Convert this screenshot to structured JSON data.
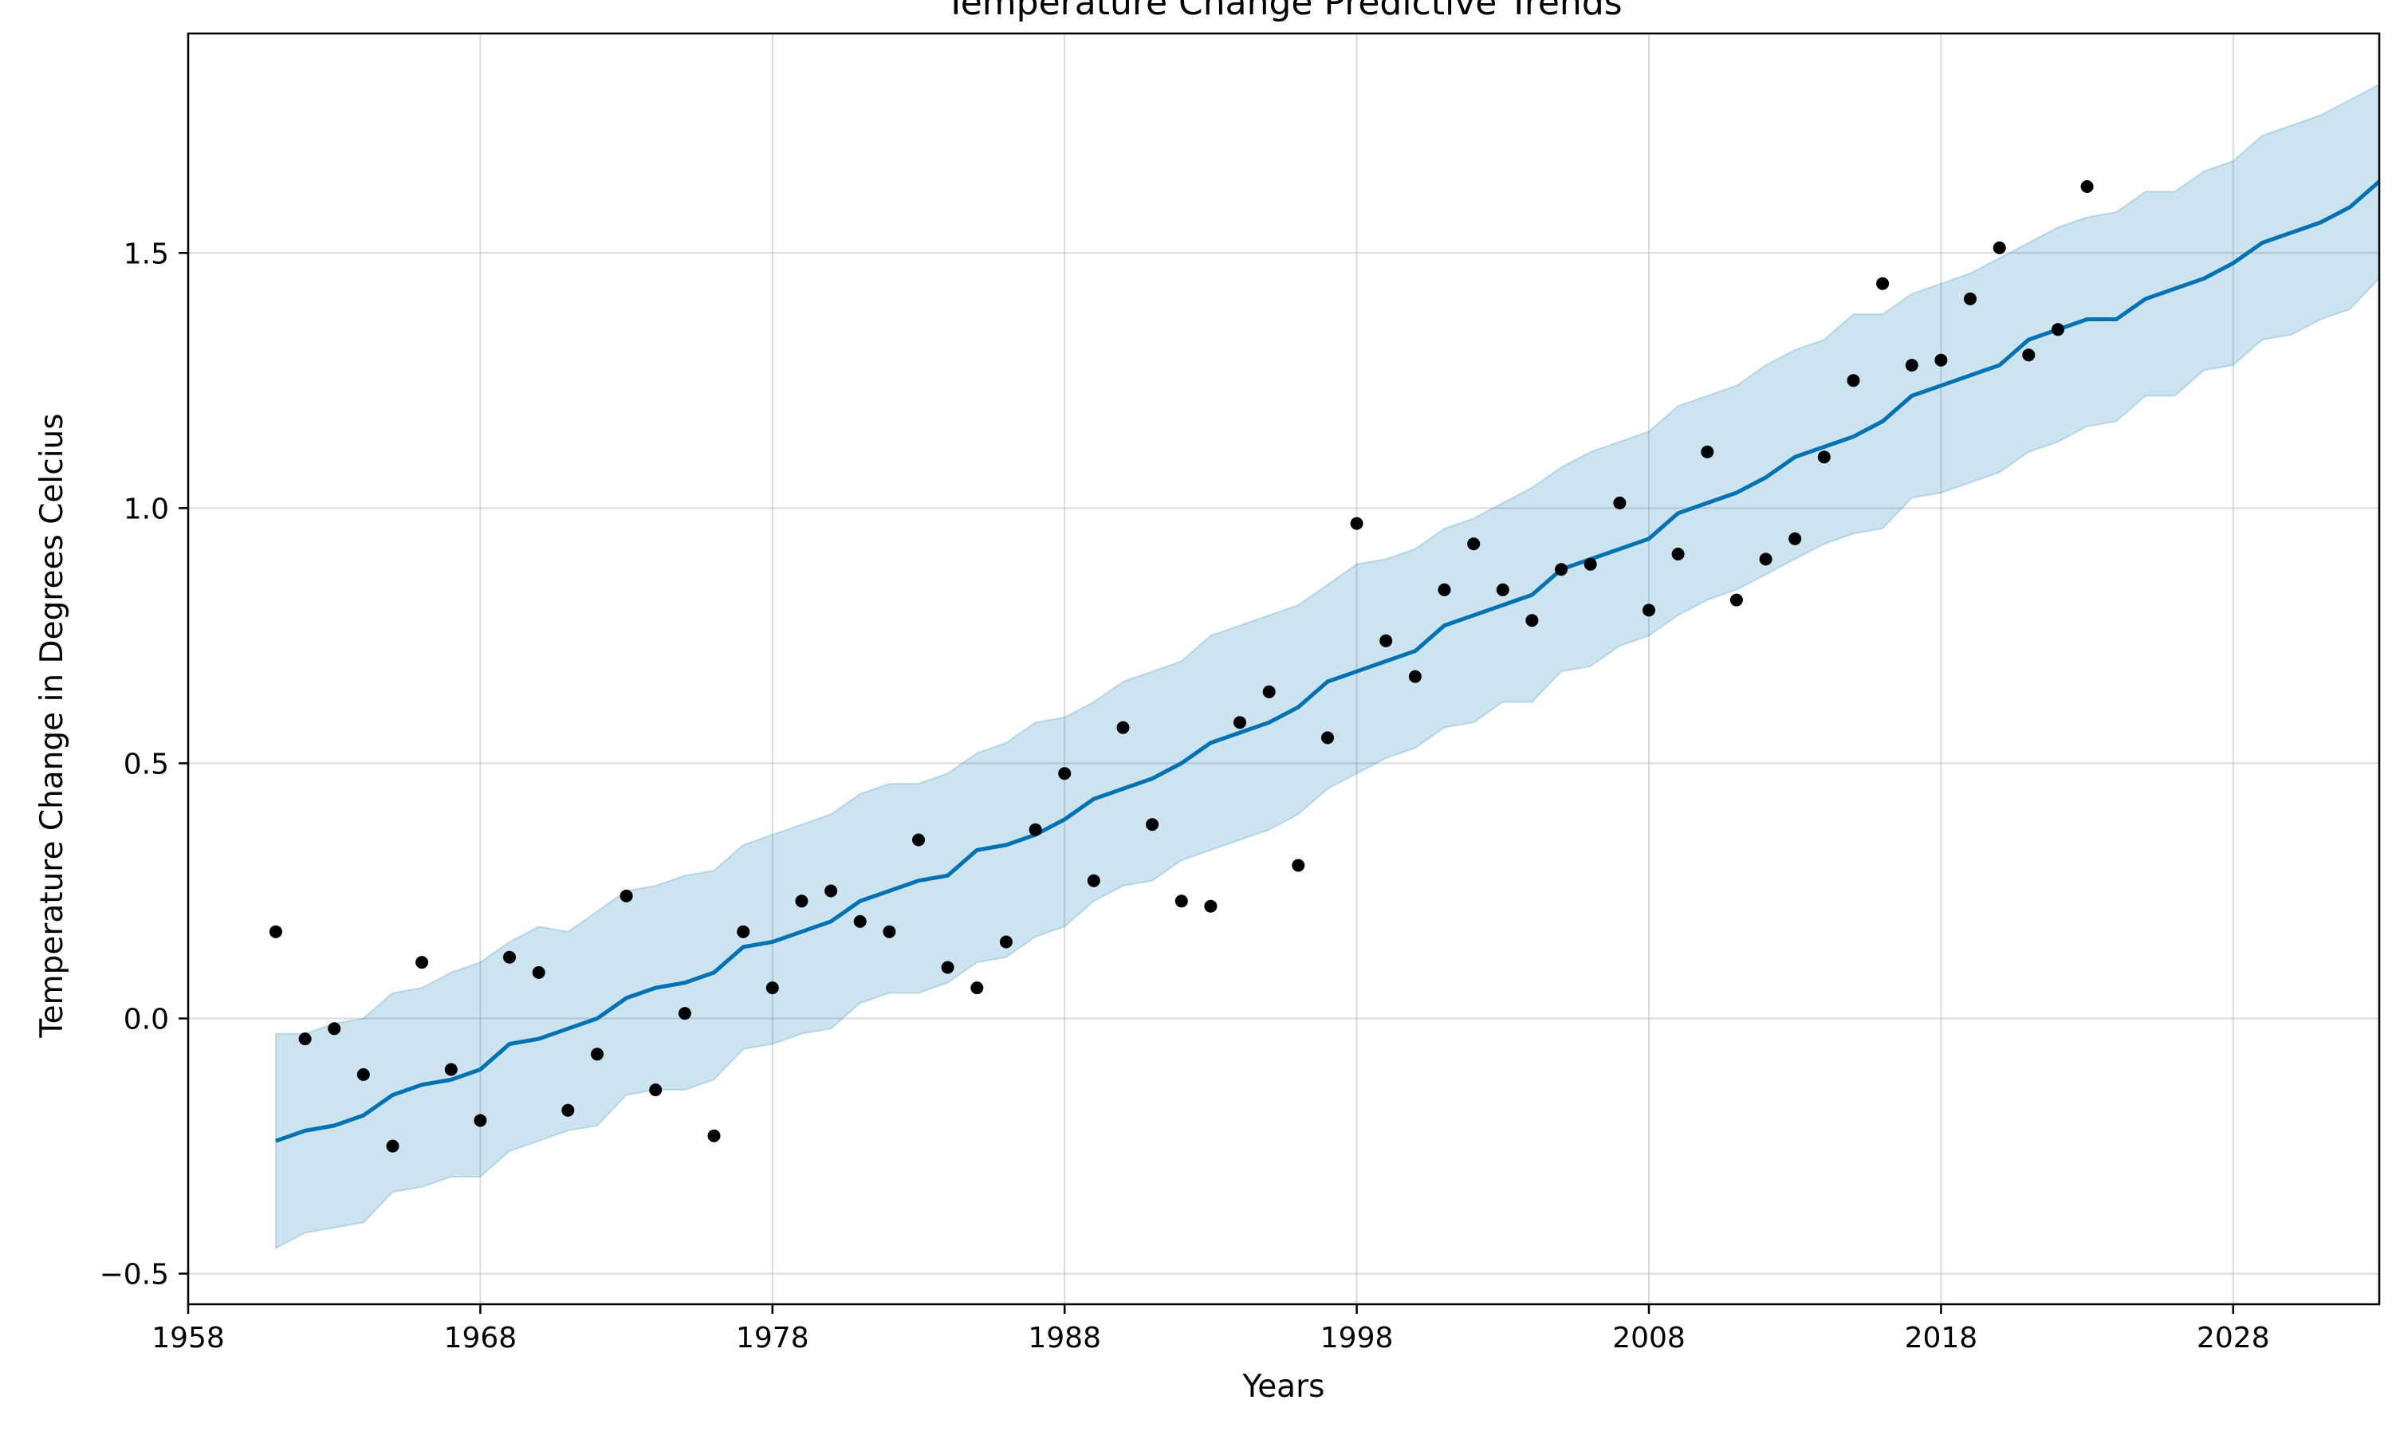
{
  "chart_data": {
    "type": "line",
    "title": "Temperature Change Predictive Trends",
    "xlabel": "Years",
    "ylabel": "Temperature Change in Degrees Celcius",
    "xlim": [
      1958,
      2033
    ],
    "ylim": [
      -0.56,
      1.93
    ],
    "x_ticks": [
      1958,
      1968,
      1978,
      1988,
      1998,
      2008,
      2018,
      2028
    ],
    "y_ticks": [
      -0.5,
      0.0,
      0.5,
      1.0,
      1.5
    ],
    "y_tick_labels": [
      "−0.5",
      "0.0",
      "0.5",
      "1.0",
      "1.5"
    ],
    "grid": true,
    "colors": {
      "forecast": "#0072B2",
      "interval": "#0072B2",
      "observed": "#000000"
    },
    "series": [
      {
        "kind": "line",
        "x": [
          1961,
          1962,
          1963,
          1964,
          1965,
          1966,
          1967,
          1968,
          1969,
          1970,
          1971,
          1972,
          1973,
          1974,
          1975,
          1976,
          1977,
          1978,
          1979,
          1980,
          1981,
          1982,
          1983,
          1984,
          1985,
          1986,
          1987,
          1988,
          1989,
          1990,
          1991,
          1992,
          1993,
          1994,
          1995,
          1996,
          1997,
          1998,
          1999,
          2000,
          2001,
          2002,
          2003,
          2004,
          2005,
          2006,
          2007,
          2008,
          2009,
          2010,
          2011,
          2012,
          2013,
          2014,
          2015,
          2016,
          2017,
          2018,
          2019,
          2020,
          2021,
          2022,
          2023,
          2024,
          2025,
          2026,
          2027,
          2028,
          2029,
          2030,
          2031,
          2032,
          2033
        ],
        "values": [
          -0.24,
          -0.22,
          -0.21,
          -0.19,
          -0.15,
          -0.13,
          -0.12,
          -0.1,
          -0.05,
          -0.04,
          -0.02,
          0.0,
          0.04,
          0.06,
          0.07,
          0.09,
          0.14,
          0.15,
          0.17,
          0.19,
          0.23,
          0.25,
          0.27,
          0.28,
          0.33,
          0.34,
          0.36,
          0.39,
          0.43,
          0.45,
          0.47,
          0.5,
          0.54,
          0.56,
          0.58,
          0.61,
          0.66,
          0.68,
          0.7,
          0.72,
          0.77,
          0.79,
          0.81,
          0.83,
          0.88,
          0.9,
          0.92,
          0.94,
          0.99,
          1.01,
          1.03,
          1.06,
          1.1,
          1.12,
          1.14,
          1.17,
          1.22,
          1.24,
          1.26,
          1.28,
          1.33,
          1.35,
          1.37,
          1.37,
          1.41,
          1.43,
          1.45,
          1.48,
          1.52,
          1.54,
          1.56,
          1.59,
          1.64
        ]
      },
      {
        "kind": "interval",
        "x": [
          1961,
          1962,
          1963,
          1964,
          1965,
          1966,
          1967,
          1968,
          1969,
          1970,
          1971,
          1972,
          1973,
          1974,
          1975,
          1976,
          1977,
          1978,
          1979,
          1980,
          1981,
          1982,
          1983,
          1984,
          1985,
          1986,
          1987,
          1988,
          1989,
          1990,
          1991,
          1992,
          1993,
          1994,
          1995,
          1996,
          1997,
          1998,
          1999,
          2000,
          2001,
          2002,
          2003,
          2004,
          2005,
          2006,
          2007,
          2008,
          2009,
          2010,
          2011,
          2012,
          2013,
          2014,
          2015,
          2016,
          2017,
          2018,
          2019,
          2020,
          2021,
          2022,
          2023,
          2024,
          2025,
          2026,
          2027,
          2028,
          2029,
          2030,
          2031,
          2032,
          2033
        ],
        "lower": [
          -0.45,
          -0.42,
          -0.41,
          -0.4,
          -0.34,
          -0.33,
          -0.31,
          -0.31,
          -0.26,
          -0.24,
          -0.22,
          -0.21,
          -0.15,
          -0.14,
          -0.14,
          -0.12,
          -0.06,
          -0.05,
          -0.03,
          -0.02,
          0.03,
          0.05,
          0.05,
          0.07,
          0.11,
          0.12,
          0.16,
          0.18,
          0.23,
          0.26,
          0.27,
          0.31,
          0.33,
          0.35,
          0.37,
          0.4,
          0.45,
          0.48,
          0.51,
          0.53,
          0.57,
          0.58,
          0.62,
          0.62,
          0.68,
          0.69,
          0.73,
          0.75,
          0.79,
          0.82,
          0.84,
          0.87,
          0.9,
          0.93,
          0.95,
          0.96,
          1.02,
          1.03,
          1.05,
          1.07,
          1.11,
          1.13,
          1.16,
          1.17,
          1.22,
          1.22,
          1.27,
          1.28,
          1.33,
          1.34,
          1.37,
          1.39,
          1.45
        ],
        "upper": [
          -0.03,
          -0.03,
          -0.01,
          0.0,
          0.05,
          0.06,
          0.09,
          0.11,
          0.15,
          0.18,
          0.17,
          0.21,
          0.25,
          0.26,
          0.28,
          0.29,
          0.34,
          0.36,
          0.38,
          0.4,
          0.44,
          0.46,
          0.46,
          0.48,
          0.52,
          0.54,
          0.58,
          0.59,
          0.62,
          0.66,
          0.68,
          0.7,
          0.75,
          0.77,
          0.79,
          0.81,
          0.85,
          0.89,
          0.9,
          0.92,
          0.96,
          0.98,
          1.01,
          1.04,
          1.08,
          1.11,
          1.13,
          1.15,
          1.2,
          1.22,
          1.24,
          1.28,
          1.31,
          1.33,
          1.38,
          1.38,
          1.42,
          1.44,
          1.46,
          1.49,
          1.52,
          1.55,
          1.57,
          1.58,
          1.62,
          1.62,
          1.66,
          1.68,
          1.73,
          1.75,
          1.77,
          1.8,
          1.83
        ]
      },
      {
        "kind": "scatter",
        "x": [
          1961,
          1962,
          1963,
          1964,
          1965,
          1966,
          1967,
          1968,
          1969,
          1970,
          1971,
          1972,
          1973,
          1974,
          1975,
          1976,
          1977,
          1978,
          1979,
          1980,
          1981,
          1982,
          1983,
          1984,
          1985,
          1986,
          1987,
          1988,
          1989,
          1990,
          1991,
          1992,
          1993,
          1994,
          1995,
          1996,
          1997,
          1998,
          1999,
          2000,
          2001,
          2002,
          2003,
          2004,
          2005,
          2006,
          2007,
          2008,
          2009,
          2010,
          2011,
          2012,
          2013,
          2014,
          2015,
          2016,
          2017,
          2018,
          2019,
          2020,
          2021,
          2022,
          2023
        ],
        "values": [
          0.17,
          -0.04,
          -0.02,
          -0.11,
          -0.25,
          0.11,
          -0.1,
          -0.2,
          0.12,
          0.09,
          -0.18,
          -0.07,
          0.24,
          -0.14,
          0.01,
          -0.23,
          0.17,
          0.06,
          0.23,
          0.25,
          0.19,
          0.17,
          0.35,
          0.1,
          0.06,
          0.15,
          0.37,
          0.48,
          0.27,
          0.57,
          0.38,
          0.23,
          0.22,
          0.58,
          0.64,
          0.3,
          0.55,
          0.97,
          0.74,
          0.67,
          0.84,
          0.93,
          0.84,
          0.78,
          0.88,
          0.89,
          1.01,
          0.8,
          0.91,
          1.11,
          0.82,
          0.9,
          0.94,
          1.1,
          1.25,
          1.44,
          1.28,
          1.29,
          1.41,
          1.51,
          1.3,
          1.35,
          1.63
        ]
      }
    ]
  }
}
